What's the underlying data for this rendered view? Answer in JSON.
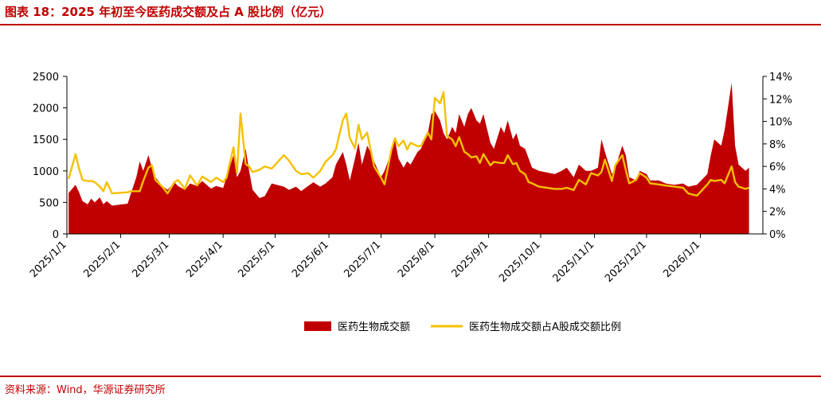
{
  "header": {
    "title": "图表 18：2025 年初至今医药成交额及占 A 股比例（亿元）"
  },
  "footer": {
    "source": "资料来源：Wind，华源证券研究所"
  },
  "colors": {
    "area": "#c00000",
    "line": "#f5c000",
    "brand": "#c00000"
  },
  "chart_data": {
    "type": "area",
    "title": "",
    "xlabel": "",
    "ylabel": "",
    "y_left": {
      "min": 0,
      "max": 2500,
      "ticks": [
        "0",
        "500",
        "1000",
        "1500",
        "2000",
        "2500"
      ]
    },
    "y_right": {
      "min": 0,
      "max": 14,
      "ticks": [
        "0%",
        "2%",
        "4%",
        "6%",
        "8%",
        "10%",
        "12%",
        "14%"
      ]
    },
    "x_ticks": [
      "2025/1/1",
      "2025/2/1",
      "2025/3/1",
      "2025/4/1",
      "2025/5/1",
      "2025/6/1",
      "2025/7/1",
      "2025/8/1",
      "2025/9/1",
      "2025/10/1",
      "2025/11/1",
      "2025/12/1",
      "2026/1/1"
    ],
    "legend_position": "bottom",
    "series": [
      {
        "name": "医药生物成交额",
        "kind": "area",
        "axis": "left",
        "points": [
          [
            "2025/1/2",
            650
          ],
          [
            "2025/1/6",
            780
          ],
          [
            "2025/1/8",
            660
          ],
          [
            "2025/1/10",
            520
          ],
          [
            "2025/1/13",
            470
          ],
          [
            "2025/1/15",
            560
          ],
          [
            "2025/1/17",
            500
          ],
          [
            "2025/1/20",
            580
          ],
          [
            "2025/1/22",
            470
          ],
          [
            "2025/1/24",
            520
          ],
          [
            "2025/1/27",
            450
          ],
          [
            "2025/2/5",
            480
          ],
          [
            "2025/2/7",
            650
          ],
          [
            "2025/2/10",
            900
          ],
          [
            "2025/2/12",
            1150
          ],
          [
            "2025/2/14",
            1000
          ],
          [
            "2025/2/17",
            1250
          ],
          [
            "2025/2/19",
            1050
          ],
          [
            "2025/2/21",
            900
          ],
          [
            "2025/2/25",
            760
          ],
          [
            "2025/2/28",
            700
          ],
          [
            "2025/3/4",
            820
          ],
          [
            "2025/3/6",
            760
          ],
          [
            "2025/3/10",
            700
          ],
          [
            "2025/3/13",
            800
          ],
          [
            "2025/3/17",
            760
          ],
          [
            "2025/3/20",
            840
          ],
          [
            "2025/3/25",
            720
          ],
          [
            "2025/3/28",
            760
          ],
          [
            "2025/4/1",
            730
          ],
          [
            "2025/4/3",
            900
          ],
          [
            "2025/4/7",
            1250
          ],
          [
            "2025/4/9",
            900
          ],
          [
            "2025/4/11",
            1000
          ],
          [
            "2025/4/14",
            1350
          ],
          [
            "2025/4/16",
            1000
          ],
          [
            "2025/4/18",
            700
          ],
          [
            "2025/4/22",
            570
          ],
          [
            "2025/4/25",
            600
          ],
          [
            "2025/4/29",
            800
          ],
          [
            "2025/5/6",
            750
          ],
          [
            "2025/5/9",
            700
          ],
          [
            "2025/5/13",
            750
          ],
          [
            "2025/5/16",
            680
          ],
          [
            "2025/5/20",
            760
          ],
          [
            "2025/5/23",
            820
          ],
          [
            "2025/5/27",
            750
          ],
          [
            "2025/5/30",
            800
          ],
          [
            "2025/6/3",
            900
          ],
          [
            "2025/6/5",
            1100
          ],
          [
            "2025/6/9",
            1300
          ],
          [
            "2025/6/11",
            1100
          ],
          [
            "2025/6/13",
            850
          ],
          [
            "2025/6/16",
            1200
          ],
          [
            "2025/6/18",
            1450
          ],
          [
            "2025/6/20",
            1100
          ],
          [
            "2025/6/23",
            1400
          ],
          [
            "2025/6/25",
            1300
          ],
          [
            "2025/6/27",
            1150
          ],
          [
            "2025/7/1",
            900
          ],
          [
            "2025/7/3",
            1000
          ],
          [
            "2025/7/7",
            1300
          ],
          [
            "2025/7/9",
            1500
          ],
          [
            "2025/7/11",
            1200
          ],
          [
            "2025/7/14",
            1050
          ],
          [
            "2025/7/16",
            1150
          ],
          [
            "2025/7/18",
            1100
          ],
          [
            "2025/7/22",
            1300
          ],
          [
            "2025/7/24",
            1350
          ],
          [
            "2025/7/28",
            1600
          ],
          [
            "2025/7/30",
            1900
          ],
          [
            "2025/8/1",
            1950
          ],
          [
            "2025/8/4",
            1800
          ],
          [
            "2025/8/6",
            1600
          ],
          [
            "2025/8/8",
            1500
          ],
          [
            "2025/8/11",
            1700
          ],
          [
            "2025/8/13",
            1600
          ],
          [
            "2025/8/15",
            1900
          ],
          [
            "2025/8/18",
            1700
          ],
          [
            "2025/8/20",
            1900
          ],
          [
            "2025/8/22",
            2000
          ],
          [
            "2025/8/25",
            1800
          ],
          [
            "2025/8/27",
            1750
          ],
          [
            "2025/8/29",
            1900
          ],
          [
            "2025/9/2",
            1450
          ],
          [
            "2025/9/4",
            1350
          ],
          [
            "2025/9/8",
            1700
          ],
          [
            "2025/9/10",
            1600
          ],
          [
            "2025/9/12",
            1800
          ],
          [
            "2025/9/15",
            1500
          ],
          [
            "2025/9/17",
            1600
          ],
          [
            "2025/9/19",
            1400
          ],
          [
            "2025/9/22",
            1350
          ],
          [
            "2025/9/24",
            1200
          ],
          [
            "2025/9/26",
            1050
          ],
          [
            "2025/9/30",
            1000
          ],
          [
            "2025/10/9",
            950
          ],
          [
            "2025/10/13",
            1000
          ],
          [
            "2025/10/16",
            1050
          ],
          [
            "2025/10/20",
            900
          ],
          [
            "2025/10/23",
            1100
          ],
          [
            "2025/10/27",
            1000
          ],
          [
            "2025/10/30",
            1000
          ],
          [
            "2025/11/3",
            1050
          ],
          [
            "2025/11/5",
            1500
          ],
          [
            "2025/11/7",
            1300
          ],
          [
            "2025/11/11",
            950
          ],
          [
            "2025/11/13",
            1050
          ],
          [
            "2025/11/17",
            1400
          ],
          [
            "2025/11/19",
            1250
          ],
          [
            "2025/11/21",
            900
          ],
          [
            "2025/11/25",
            850
          ],
          [
            "2025/11/27",
            1000
          ],
          [
            "2025/12/1",
            950
          ],
          [
            "2025/12/3",
            850
          ],
          [
            "2025/12/8",
            850
          ],
          [
            "2025/12/12",
            800
          ],
          [
            "2025/12/17",
            780
          ],
          [
            "2025/12/22",
            800
          ],
          [
            "2025/12/25",
            750
          ],
          [
            "2025/12/30",
            780
          ],
          [
            "2026/1/5",
            950
          ],
          [
            "2026/1/7",
            1250
          ],
          [
            "2026/1/9",
            1500
          ],
          [
            "2026/1/13",
            1400
          ],
          [
            "2026/1/15",
            1650
          ],
          [
            "2026/1/19",
            2400
          ],
          [
            "2026/1/21",
            1400
          ],
          [
            "2026/1/23",
            1100
          ],
          [
            "2026/1/27",
            1000
          ],
          [
            "2026/1/29",
            1050
          ]
        ]
      },
      {
        "name": "医药生物成交额占A股成交额比例",
        "kind": "line",
        "axis": "right",
        "points": [
          [
            "2025/1/2",
            4.9
          ],
          [
            "2025/1/6",
            7.1
          ],
          [
            "2025/1/8",
            5.8
          ],
          [
            "2025/1/10",
            4.8
          ],
          [
            "2025/1/13",
            4.7
          ],
          [
            "2025/1/15",
            4.7
          ],
          [
            "2025/1/17",
            4.6
          ],
          [
            "2025/1/20",
            4.2
          ],
          [
            "2025/1/22",
            3.8
          ],
          [
            "2025/1/24",
            4.6
          ],
          [
            "2025/1/27",
            3.6
          ],
          [
            "2025/2/5",
            3.7
          ],
          [
            "2025/2/7",
            3.8
          ],
          [
            "2025/2/10",
            3.8
          ],
          [
            "2025/2/12",
            3.8
          ],
          [
            "2025/2/14",
            4.7
          ],
          [
            "2025/2/17",
            5.9
          ],
          [
            "2025/2/19",
            6.1
          ],
          [
            "2025/2/21",
            4.8
          ],
          [
            "2025/2/25",
            4.2
          ],
          [
            "2025/2/28",
            3.6
          ],
          [
            "2025/3/4",
            4.6
          ],
          [
            "2025/3/6",
            4.8
          ],
          [
            "2025/3/10",
            4.0
          ],
          [
            "2025/3/13",
            5.2
          ],
          [
            "2025/3/17",
            4.3
          ],
          [
            "2025/3/20",
            5.1
          ],
          [
            "2025/3/25",
            4.6
          ],
          [
            "2025/3/28",
            5.0
          ],
          [
            "2025/4/1",
            4.6
          ],
          [
            "2025/4/3",
            5.0
          ],
          [
            "2025/4/7",
            7.7
          ],
          [
            "2025/4/9",
            5.4
          ],
          [
            "2025/4/11",
            10.7
          ],
          [
            "2025/4/14",
            6.2
          ],
          [
            "2025/4/16",
            6.0
          ],
          [
            "2025/4/18",
            5.5
          ],
          [
            "2025/4/22",
            5.7
          ],
          [
            "2025/4/25",
            6.0
          ],
          [
            "2025/4/29",
            5.8
          ],
          [
            "2025/5/6",
            7.0
          ],
          [
            "2025/5/9",
            6.5
          ],
          [
            "2025/5/13",
            5.6
          ],
          [
            "2025/5/16",
            5.3
          ],
          [
            "2025/5/20",
            5.4
          ],
          [
            "2025/5/23",
            5.0
          ],
          [
            "2025/5/27",
            5.6
          ],
          [
            "2025/5/30",
            6.4
          ],
          [
            "2025/6/3",
            7.0
          ],
          [
            "2025/6/5",
            7.5
          ],
          [
            "2025/6/9",
            10.1
          ],
          [
            "2025/6/11",
            10.7
          ],
          [
            "2025/6/13",
            8.5
          ],
          [
            "2025/6/16",
            7.6
          ],
          [
            "2025/6/18",
            9.7
          ],
          [
            "2025/6/20",
            8.4
          ],
          [
            "2025/6/23",
            9.0
          ],
          [
            "2025/6/25",
            7.5
          ],
          [
            "2025/6/27",
            6.0
          ],
          [
            "2025/7/1",
            5.0
          ],
          [
            "2025/7/3",
            4.4
          ],
          [
            "2025/7/7",
            7.5
          ],
          [
            "2025/7/9",
            8.5
          ],
          [
            "2025/7/11",
            7.8
          ],
          [
            "2025/7/14",
            8.3
          ],
          [
            "2025/7/16",
            7.5
          ],
          [
            "2025/7/18",
            8.1
          ],
          [
            "2025/7/22",
            7.8
          ],
          [
            "2025/7/24",
            7.8
          ],
          [
            "2025/7/28",
            9.0
          ],
          [
            "2025/7/30",
            8.4
          ],
          [
            "2025/8/1",
            12.1
          ],
          [
            "2025/8/4",
            11.6
          ],
          [
            "2025/8/6",
            12.6
          ],
          [
            "2025/8/8",
            8.7
          ],
          [
            "2025/8/11",
            8.4
          ],
          [
            "2025/8/13",
            7.8
          ],
          [
            "2025/8/15",
            8.6
          ],
          [
            "2025/8/18",
            7.3
          ],
          [
            "2025/8/20",
            7.1
          ],
          [
            "2025/8/22",
            6.8
          ],
          [
            "2025/8/25",
            6.9
          ],
          [
            "2025/8/27",
            6.3
          ],
          [
            "2025/8/29",
            7.1
          ],
          [
            "2025/9/2",
            6.1
          ],
          [
            "2025/9/4",
            6.4
          ],
          [
            "2025/9/8",
            6.3
          ],
          [
            "2025/9/10",
            6.3
          ],
          [
            "2025/9/12",
            7.0
          ],
          [
            "2025/9/15",
            6.2
          ],
          [
            "2025/9/17",
            6.3
          ],
          [
            "2025/9/19",
            5.6
          ],
          [
            "2025/9/22",
            5.3
          ],
          [
            "2025/9/24",
            4.6
          ],
          [
            "2025/9/26",
            4.5
          ],
          [
            "2025/9/30",
            4.2
          ],
          [
            "2025/10/9",
            4.0
          ],
          [
            "2025/10/13",
            4.0
          ],
          [
            "2025/10/16",
            4.1
          ],
          [
            "2025/10/20",
            3.9
          ],
          [
            "2025/10/23",
            4.8
          ],
          [
            "2025/10/27",
            4.4
          ],
          [
            "2025/10/30",
            5.4
          ],
          [
            "2025/11/3",
            5.2
          ],
          [
            "2025/11/5",
            5.5
          ],
          [
            "2025/11/7",
            6.6
          ],
          [
            "2025/11/11",
            4.7
          ],
          [
            "2025/11/13",
            6.1
          ],
          [
            "2025/11/17",
            7.0
          ],
          [
            "2025/11/19",
            5.7
          ],
          [
            "2025/11/21",
            4.5
          ],
          [
            "2025/11/25",
            4.8
          ],
          [
            "2025/11/27",
            5.4
          ],
          [
            "2025/12/1",
            5.0
          ],
          [
            "2025/12/3",
            4.5
          ],
          [
            "2025/12/8",
            4.4
          ],
          [
            "2025/12/12",
            4.3
          ],
          [
            "2025/12/17",
            4.2
          ],
          [
            "2025/12/22",
            4.1
          ],
          [
            "2025/12/25",
            3.6
          ],
          [
            "2025/12/30",
            3.4
          ],
          [
            "2026/1/5",
            4.4
          ],
          [
            "2026/1/7",
            4.8
          ],
          [
            "2026/1/9",
            4.7
          ],
          [
            "2026/1/13",
            4.8
          ],
          [
            "2026/1/15",
            4.5
          ],
          [
            "2026/1/19",
            6.0
          ],
          [
            "2026/1/21",
            4.6
          ],
          [
            "2026/1/23",
            4.2
          ],
          [
            "2026/1/27",
            4.0
          ],
          [
            "2026/1/29",
            4.1
          ]
        ]
      }
    ]
  }
}
